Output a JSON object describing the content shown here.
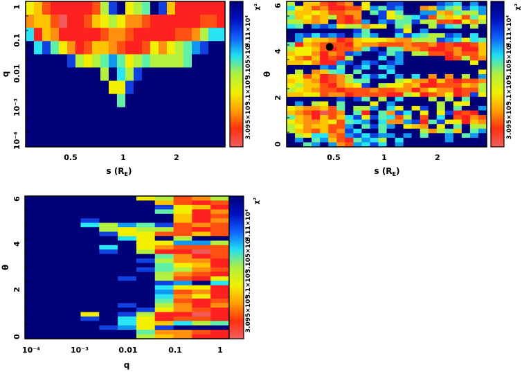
{
  "colormap": [
    "#f05a5a",
    "#ff2020",
    "#ff5012",
    "#ff9010",
    "#ffc400",
    "#f2f000",
    "#b4f040",
    "#60f0a8",
    "#28e4f4",
    "#1098f0",
    "#1040e0",
    "#000078"
  ],
  "colorbar": {
    "labels": [
      "3.095×10⁴",
      "3.1×10⁴",
      "3.105×10⁴",
      "3.11×10⁴"
    ],
    "title": "χ²",
    "stops": [
      "#000078",
      "#0010c0",
      "#1060ff",
      "#20e0f0",
      "#b0f040",
      "#f0f000",
      "#ffa000",
      "#ff3010",
      "#f06060"
    ]
  },
  "chart_data": [
    {
      "type": "heatmap",
      "xlabel_main": "s (R",
      "xlabel_sub": "E",
      "xlabel_close": ")",
      "ylabel": "q",
      "xscale": "log",
      "yscale": "log",
      "xlim": [
        0.28,
        3.77
      ],
      "ylim": [
        6.8e-05,
        1.45
      ],
      "xticks": [
        "0.5",
        "1",
        "2"
      ],
      "yticks": [
        "1",
        "0.1",
        "0.01",
        "10⁻³",
        "10⁻⁴"
      ],
      "value_levels": "0=lowest χ² (red) ... 11=highest χ² (navy)",
      "grid": [
        "5421111126ab567ba4111111",
        "344201124565332111111221",
        "814311111233211111223688",
        "b8a753124432112535679abb",
        "bbbbba65679756766667bbbb",
        "bbbbbbbbb6b86abbbbbbbbbb",
        "bbbbbbbbbb55abbbbbbbbbbb",
        "bbbbbbbbbbb7bbbbbbbbbbbb",
        "bbbbbbbbbbbbbbbbbbbbbbbb",
        "bbbbbbbbbbbbbbbbbbbbbbbb",
        "bbbbbbbbbbbbbbbbbbbbbbbb"
      ]
    },
    {
      "type": "heatmap",
      "xlabel_main": "s (R",
      "xlabel_sub": "E",
      "xlabel_close": ")",
      "ylabel": "θ",
      "xscale": "log",
      "yscale": "linear",
      "xlim": [
        0.28,
        3.77
      ],
      "ylim": [
        -0.1,
        6.3
      ],
      "xticks": [
        "0.5",
        "1",
        "2"
      ],
      "yticks": [
        "0",
        "2",
        "4",
        "6"
      ],
      "marker": {
        "s": 0.49,
        "theta": 4.3
      },
      "grid": [
        "6b442123b5bbaabbbba98b9b",
        "854231122597a9bb34976a89",
        "644542233b7a57bb99437669",
        "745346213bba5678a2645275",
        "66434b2129b9a77a66221536",
        "87b9a9566355b76bb6a87b6b",
        "bbbbbbbba7bbba5b9bbbbbbb",
        "b9a8a9ab979bb8a8766a9b8b",
        "b95443124555433666a98587",
        "714322214332223223121124",
        "6554212237ab773321123114",
        "4553132a9bba79b662213224",
        "53241216bbb8b9bbbbb12623",
        "4453119ab9aba9bbbbbbbb5b",
        "bbbb9a7ba8b89bbbbbbbbbbb",
        "b6b3478b7bbb8bbbbbbbbbb5",
        "55241236b8a8b9b8b3b3b6b9",
        "4543123677bbb65331421223",
        "564421345ab6553411222436",
        "654322122232233135331226",
        "4455233122221165123512a5",
        "bbbbbbaba7b6b8bbb6b6b7bb",
        "b9b65b7bbb5b9bbbbb6b55bb",
        "5433427b669b85b5ab6b7bb9",
        "4321023b71b73a8b5b5a121b",
        "74314248a5a7826b2b8b2132",
        "5433452789b8339a17a55143",
        "65344229b7a79b543b5b7b66",
        "6432423a8bb7bbbb63674b79",
        "b6588329a8a99b9b7bb9b79b",
        "b9b794217986b8bbbbb9bbbb",
        "bb79b93298a8b9bbbbbbbbbb"
      ]
    },
    {
      "type": "heatmap",
      "xlabel": "q",
      "ylabel": "θ",
      "xscale": "log",
      "yscale": "linear",
      "xlim": [
        7.5e-05,
        1.8
      ],
      "ylim": [
        -0.1,
        6.3
      ],
      "xticks": [
        "10⁻⁴",
        "10⁻³",
        "0.01",
        "0.1",
        "1"
      ],
      "yticks": [
        "0",
        "2",
        "4",
        "6"
      ],
      "grid": [
        "bbbbbb56236",
        "bbbbbbb4212",
        "bbbbbbba541",
        "bbbbbbb7513",
        "bbbbbbbb412",
        "bbbabbbb413",
        "bbb8697a232",
        "bbbb6566212",
        "bbbba552242",
        "bbbbb85b6bb",
        "bbbbbb55996",
        "bbbb8b53222",
        "bbbbab61102",
        "bbbbbbb7312",
        "bbbbbba6331",
        "bbbbbbb7541",
        "bbbbbba7632",
        "bbbbbbb6321",
        "bbbbbab6215",
        "bbbbbbba9b8",
        "bbbbbbb8551",
        "bbbbbbb9231",
        "bbbbbbb8351",
        "bbbbbbb7212",
        "bbbbbab6313",
        "bbbbbba5321",
        "bbb5ba61101",
        "bbbab851221",
        "bbbbb854867",
        "bbbba95abbb",
        "bbbbbb73321",
        "bbbbbb64311"
      ]
    }
  ]
}
